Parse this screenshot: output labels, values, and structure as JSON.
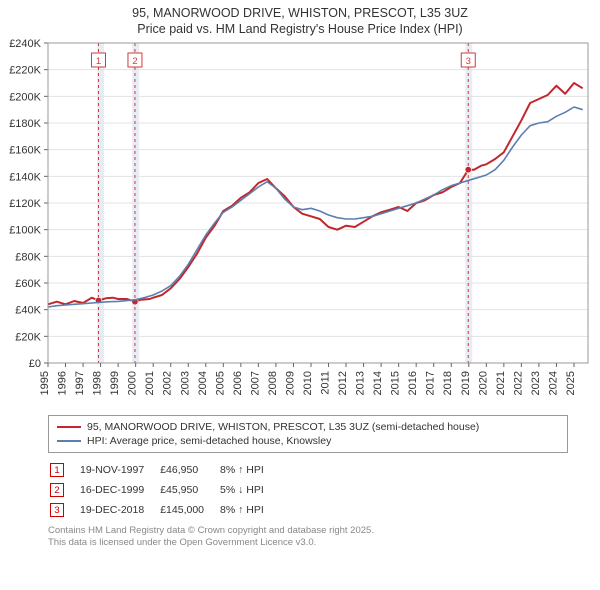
{
  "title_line1": "95, MANORWOOD DRIVE, WHISTON, PRESCOT, L35 3UZ",
  "title_line2": "Price paid vs. HM Land Registry's House Price Index (HPI)",
  "chart": {
    "type": "line",
    "background_color": "#ffffff",
    "plot_border_color": "#999999",
    "grid_color": "#e3e3e3",
    "x": {
      "min": 1995,
      "max": 2025.8,
      "ticks": [
        1995,
        1996,
        1997,
        1998,
        1999,
        2000,
        2001,
        2002,
        2003,
        2004,
        2005,
        2006,
        2007,
        2008,
        2009,
        2010,
        2011,
        2012,
        2013,
        2014,
        2015,
        2016,
        2017,
        2018,
        2019,
        2020,
        2021,
        2022,
        2023,
        2024,
        2025
      ]
    },
    "y": {
      "min": 0,
      "max": 240000,
      "tick_step": 20000,
      "prefix": "£",
      "suffix": "K",
      "divisor": 1000
    },
    "shaded_bands": [
      {
        "from": 1997.8,
        "to": 1998.2,
        "color": "#e8edf5"
      },
      {
        "from": 1999.8,
        "to": 2000.2,
        "color": "#e8edf5"
      },
      {
        "from": 2018.8,
        "to": 2019.2,
        "color": "#e8edf5"
      }
    ],
    "vlines": [
      {
        "x": 1997.88,
        "color": "#d23a3a",
        "dash": "3,3",
        "label": "1"
      },
      {
        "x": 1999.96,
        "color": "#d23a3a",
        "dash": "3,3",
        "label": "2"
      },
      {
        "x": 2018.97,
        "color": "#d23a3a",
        "dash": "3,3",
        "label": "3"
      }
    ],
    "series": [
      {
        "name": "price_paid",
        "color": "#c1272d",
        "width": 2,
        "points": [
          [
            1995,
            44000
          ],
          [
            1995.5,
            46000
          ],
          [
            1996,
            44000
          ],
          [
            1996.5,
            46500
          ],
          [
            1997,
            45000
          ],
          [
            1997.5,
            49000
          ],
          [
            1997.88,
            46950
          ],
          [
            1998.3,
            48500
          ],
          [
            1998.7,
            49000
          ],
          [
            1999,
            48000
          ],
          [
            1999.5,
            48000
          ],
          [
            1999.96,
            45950
          ],
          [
            2000.3,
            47500
          ],
          [
            2000.8,
            48000
          ],
          [
            2001,
            49000
          ],
          [
            2001.5,
            51000
          ],
          [
            2002,
            56000
          ],
          [
            2002.5,
            63000
          ],
          [
            2003,
            72000
          ],
          [
            2003.5,
            82000
          ],
          [
            2004,
            94000
          ],
          [
            2004.5,
            103000
          ],
          [
            2005,
            114000
          ],
          [
            2005.5,
            118000
          ],
          [
            2006,
            124000
          ],
          [
            2006.5,
            128000
          ],
          [
            2007,
            135000
          ],
          [
            2007.5,
            138000
          ],
          [
            2008,
            131000
          ],
          [
            2008.5,
            125000
          ],
          [
            2009,
            117000
          ],
          [
            2009.5,
            112000
          ],
          [
            2010,
            110000
          ],
          [
            2010.5,
            108000
          ],
          [
            2011,
            102000
          ],
          [
            2011.5,
            100000
          ],
          [
            2012,
            103000
          ],
          [
            2012.5,
            102000
          ],
          [
            2013,
            106000
          ],
          [
            2013.5,
            110000
          ],
          [
            2014,
            113000
          ],
          [
            2014.5,
            115000
          ],
          [
            2015,
            117000
          ],
          [
            2015.5,
            114000
          ],
          [
            2016,
            120000
          ],
          [
            2016.5,
            122000
          ],
          [
            2017,
            126000
          ],
          [
            2017.5,
            128000
          ],
          [
            2018,
            132000
          ],
          [
            2018.5,
            135000
          ],
          [
            2018.97,
            145000
          ],
          [
            2019.3,
            145000
          ],
          [
            2019.7,
            148000
          ],
          [
            2020,
            149000
          ],
          [
            2020.5,
            153000
          ],
          [
            2021,
            158000
          ],
          [
            2021.5,
            170000
          ],
          [
            2022,
            182000
          ],
          [
            2022.5,
            195000
          ],
          [
            2023,
            198000
          ],
          [
            2023.5,
            201000
          ],
          [
            2024,
            208000
          ],
          [
            2024.5,
            202000
          ],
          [
            2025,
            210000
          ],
          [
            2025.5,
            206000
          ]
        ],
        "markers": [
          {
            "x": 1997.88,
            "y": 46950
          },
          {
            "x": 1999.96,
            "y": 45950
          },
          {
            "x": 2018.97,
            "y": 145000
          }
        ]
      },
      {
        "name": "hpi",
        "color": "#5b7fb0",
        "width": 1.6,
        "points": [
          [
            1995,
            42000
          ],
          [
            1995.5,
            43000
          ],
          [
            1996,
            43500
          ],
          [
            1996.5,
            44000
          ],
          [
            1997,
            44500
          ],
          [
            1997.5,
            45000
          ],
          [
            1998,
            45500
          ],
          [
            1998.5,
            46000
          ],
          [
            1999,
            46200
          ],
          [
            1999.5,
            46800
          ],
          [
            2000,
            47500
          ],
          [
            2000.5,
            49000
          ],
          [
            2001,
            51000
          ],
          [
            2001.5,
            54000
          ],
          [
            2002,
            58000
          ],
          [
            2002.5,
            65000
          ],
          [
            2003,
            74000
          ],
          [
            2003.5,
            85000
          ],
          [
            2004,
            96000
          ],
          [
            2004.5,
            105000
          ],
          [
            2005,
            113000
          ],
          [
            2005.5,
            117000
          ],
          [
            2006,
            122000
          ],
          [
            2006.5,
            127000
          ],
          [
            2007,
            132000
          ],
          [
            2007.5,
            136000
          ],
          [
            2008,
            131000
          ],
          [
            2008.5,
            123000
          ],
          [
            2009,
            117000
          ],
          [
            2009.5,
            115000
          ],
          [
            2010,
            116000
          ],
          [
            2010.5,
            114000
          ],
          [
            2011,
            111000
          ],
          [
            2011.5,
            109000
          ],
          [
            2012,
            108000
          ],
          [
            2012.5,
            108000
          ],
          [
            2013,
            109000
          ],
          [
            2013.5,
            110000
          ],
          [
            2014,
            112000
          ],
          [
            2014.5,
            114000
          ],
          [
            2015,
            116000
          ],
          [
            2015.5,
            118000
          ],
          [
            2016,
            120000
          ],
          [
            2016.5,
            123000
          ],
          [
            2017,
            126000
          ],
          [
            2017.5,
            130000
          ],
          [
            2018,
            133000
          ],
          [
            2018.5,
            135000
          ],
          [
            2019,
            137000
          ],
          [
            2019.5,
            139000
          ],
          [
            2020,
            141000
          ],
          [
            2020.5,
            145000
          ],
          [
            2021,
            152000
          ],
          [
            2021.5,
            162000
          ],
          [
            2022,
            171000
          ],
          [
            2022.5,
            178000
          ],
          [
            2023,
            180000
          ],
          [
            2023.5,
            181000
          ],
          [
            2024,
            185000
          ],
          [
            2024.5,
            188000
          ],
          [
            2025,
            192000
          ],
          [
            2025.5,
            190000
          ]
        ]
      }
    ]
  },
  "legend": [
    {
      "color": "#c1272d",
      "label": "95, MANORWOOD DRIVE, WHISTON, PRESCOT, L35 3UZ (semi-detached house)"
    },
    {
      "color": "#5b7fb0",
      "label": "HPI: Average price, semi-detached house, Knowsley"
    }
  ],
  "marker_rows": [
    {
      "num": "1",
      "date": "19-NOV-1997",
      "price": "£46,950",
      "delta": "8% ↑ HPI"
    },
    {
      "num": "2",
      "date": "16-DEC-1999",
      "price": "£45,950",
      "delta": "5% ↓ HPI"
    },
    {
      "num": "3",
      "date": "19-DEC-2018",
      "price": "£145,000",
      "delta": "8% ↑ HPI"
    }
  ],
  "footer_line1": "Contains HM Land Registry data © Crown copyright and database right 2025.",
  "footer_line2": "This data is licensed under the Open Government Licence v3.0."
}
